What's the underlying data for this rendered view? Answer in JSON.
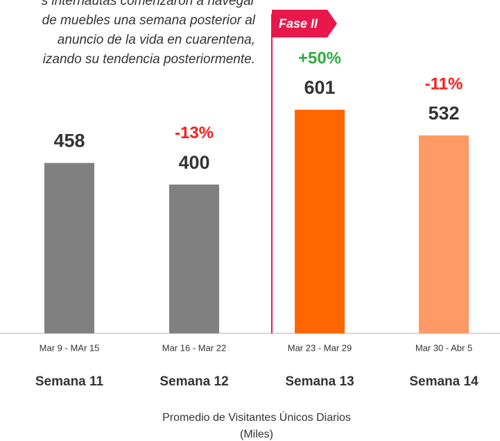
{
  "chart_data": {
    "type": "bar",
    "annotation": [
      "s internautas comenzaron a navegar",
      "de muebles una semana posterior al",
      "anuncio de la vida en cuarentena,",
      "izando su tendencia posteriormente."
    ],
    "phase_label": "Fase II",
    "categories": [
      "Mar 9 - MAr 15",
      "Mar 16 - Mar 22",
      "Mar 23 - Mar 29",
      "Mar 30 - Abr 5"
    ],
    "weeks": [
      "Semana 11",
      "Semana 12",
      "Semana 13",
      "Semana 14"
    ],
    "values": [
      458,
      400,
      601,
      532
    ],
    "colors": [
      "#808080",
      "#808080",
      "#ff6600",
      "#ff9966"
    ],
    "changes": [
      null,
      -13,
      50,
      -11
    ],
    "change_labels": [
      null,
      "-13%",
      "+50%",
      "-11%"
    ],
    "x_label": [
      "Promedio de Visitantes Únicos Diarios",
      "(Miles)"
    ]
  }
}
